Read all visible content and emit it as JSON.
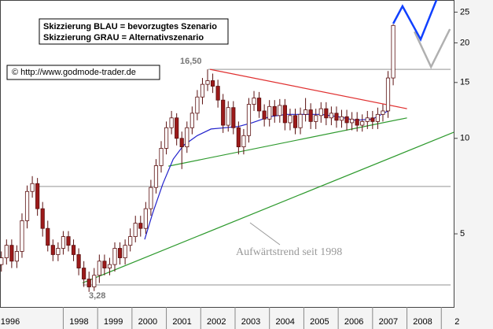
{
  "chart_data": {
    "type": "candlestick",
    "x": [
      1996.2,
      1996.35,
      1996.5,
      1996.65,
      1996.8,
      1996.95,
      1997.1,
      1997.25,
      1997.4,
      1997.55,
      1997.7,
      1997.85,
      1998.0,
      1998.15,
      1998.3,
      1998.45,
      1998.6,
      1998.75,
      1998.9,
      1999.05,
      1999.2,
      1999.35,
      1999.5,
      1999.65,
      1999.8,
      1999.95,
      2000.1,
      2000.25,
      2000.4,
      2000.55,
      2000.7,
      2000.85,
      2001.0,
      2001.15,
      2001.3,
      2001.45,
      2001.6,
      2001.75,
      2001.9,
      2002.05,
      2002.2,
      2002.35,
      2002.5,
      2002.65,
      2002.8,
      2002.95,
      2003.1,
      2003.25,
      2003.4,
      2003.55,
      2003.7,
      2003.85,
      2004.0,
      2004.15,
      2004.3,
      2004.45,
      2004.6,
      2004.75,
      2004.9,
      2005.05,
      2005.2,
      2005.35,
      2005.5,
      2005.65,
      2005.8,
      2005.95,
      2006.1,
      2006.25,
      2006.4,
      2006.55,
      2006.7,
      2006.85,
      2007.0,
      2007.15,
      2007.3,
      2007.45,
      2007.6
    ],
    "open": [
      4.0,
      4.2,
      4.6,
      4.1,
      4.4,
      5.5,
      6.8,
      7.2,
      6.0,
      5.2,
      4.6,
      4.3,
      4.5,
      4.9,
      4.6,
      4.3,
      3.9,
      3.6,
      3.4,
      3.7,
      4.1,
      3.9,
      4.0,
      4.5,
      4.2,
      4.6,
      4.9,
      5.4,
      5.2,
      6.0,
      7.0,
      8.2,
      9.3,
      10.8,
      11.6,
      10.0,
      9.4,
      10.8,
      12.0,
      13.5,
      14.8,
      15.2,
      14.6,
      13.2,
      11.0,
      12.5,
      10.8,
      9.4,
      10.2,
      12.8,
      13.4,
      12.2,
      11.5,
      12.6,
      11.8,
      12.7,
      11.2,
      11.8,
      10.8,
      11.9,
      12.3,
      11.3,
      11.8,
      12.4,
      11.6,
      12.0,
      11.4,
      11.7,
      11.2,
      11.5,
      11.0,
      11.3,
      11.6,
      11.3,
      11.9,
      12.2,
      15.5
    ],
    "high": [
      4.4,
      4.8,
      4.8,
      4.6,
      5.8,
      7.1,
      7.6,
      7.5,
      6.3,
      5.5,
      4.8,
      4.7,
      5.1,
      5.1,
      4.8,
      4.5,
      4.1,
      3.8,
      3.9,
      4.3,
      4.3,
      4.2,
      4.7,
      4.7,
      4.8,
      5.2,
      5.7,
      5.7,
      6.3,
      7.4,
      8.6,
      9.8,
      11.3,
      12.2,
      12.0,
      10.5,
      11.3,
      12.6,
      14.2,
      15.5,
      16.5,
      16.0,
      15.3,
      13.8,
      13.1,
      13.1,
      11.3,
      10.7,
      13.4,
      14.1,
      14.0,
      12.8,
      13.2,
      13.2,
      13.3,
      13.3,
      12.4,
      12.4,
      12.5,
      13.4,
      12.9,
      12.4,
      13.0,
      13.0,
      12.6,
      12.6,
      12.3,
      12.3,
      12.1,
      12.1,
      11.9,
      12.2,
      12.2,
      12.5,
      12.8,
      16.3,
      22.9
    ],
    "low": [
      3.8,
      4.0,
      3.9,
      3.9,
      4.2,
      5.2,
      6.5,
      5.7,
      4.9,
      4.4,
      4.1,
      4.1,
      4.3,
      4.4,
      4.1,
      3.7,
      3.4,
      3.28,
      3.3,
      3.5,
      3.7,
      3.7,
      3.8,
      4.0,
      4.0,
      4.4,
      4.7,
      4.9,
      5.0,
      5.7,
      6.7,
      7.8,
      8.9,
      10.3,
      9.5,
      8.0,
      9.0,
      10.3,
      11.4,
      12.8,
      14.1,
      13.9,
      12.5,
      10.4,
      10.5,
      10.3,
      8.9,
      8.9,
      9.7,
      12.2,
      11.6,
      10.9,
      10.9,
      11.2,
      11.2,
      10.6,
      10.6,
      10.3,
      10.3,
      11.3,
      10.7,
      10.7,
      11.2,
      11.0,
      11.0,
      10.8,
      10.8,
      10.6,
      10.6,
      10.5,
      10.5,
      10.7,
      10.7,
      10.7,
      11.3,
      11.6,
      14.7
    ],
    "close": [
      4.2,
      4.6,
      4.1,
      4.4,
      5.5,
      6.8,
      7.2,
      6.0,
      5.2,
      4.6,
      4.3,
      4.5,
      4.9,
      4.6,
      4.3,
      3.9,
      3.6,
      3.4,
      3.7,
      4.1,
      3.9,
      4.0,
      4.5,
      4.2,
      4.6,
      4.9,
      5.4,
      5.2,
      6.0,
      7.0,
      8.2,
      9.3,
      10.8,
      11.6,
      10.0,
      9.4,
      10.8,
      12.0,
      13.5,
      14.8,
      15.2,
      14.6,
      13.2,
      11.0,
      12.5,
      10.8,
      9.4,
      10.2,
      12.8,
      13.4,
      12.2,
      11.5,
      12.6,
      11.8,
      12.7,
      11.2,
      11.8,
      10.8,
      11.9,
      12.3,
      11.3,
      11.8,
      12.4,
      11.6,
      12.0,
      11.4,
      11.7,
      11.2,
      11.5,
      11.0,
      11.3,
      11.6,
      11.3,
      11.9,
      12.2,
      15.5,
      22.7
    ],
    "up_color": "#ffffff",
    "down_color": "#9c1a1a",
    "edge_color": "#5a0f0f",
    "xlim": [
      1996.16,
      2009.36
    ],
    "xticks": [
      1996,
      1998,
      1999,
      2000,
      2001,
      2002,
      2003,
      2004,
      2005,
      2006,
      2007,
      2008,
      {
        "value": 2009,
        "label": "2"
      }
    ],
    "ylim": [
      2.94,
      27.3
    ],
    "yticks": [
      5,
      10,
      15,
      20,
      25
    ],
    "log_scale": true,
    "grid": false,
    "overlays": [
      {
        "color": "#a8a8a8",
        "x": [
          2002.22,
          2009.27
        ],
        "values": [
          16.5,
          16.5
        ]
      },
      {
        "color": "#a8a8a8",
        "x": [
          1997.24,
          2009.27
        ],
        "values": [
          7.05,
          7.05
        ]
      },
      {
        "color": "#a8a8a8",
        "x": [
          1998.56,
          2009.27
        ],
        "values": [
          3.45,
          3.45
        ]
      },
      {
        "color": "#e03030",
        "x": [
          2002.27,
          2008.0
        ],
        "values": [
          16.5,
          12.4
        ]
      },
      {
        "color": "#2e9a2e",
        "x": [
          2001.06,
          2008.0
        ],
        "values": [
          8.17,
          11.6
        ]
      },
      {
        "color": "#2e9a2e",
        "x": [
          1998.56,
          2009.36
        ],
        "values": [
          3.5,
          10.45
        ]
      },
      {
        "color": "#2222cc",
        "x": [
          2000.37,
          2000.6,
          2000.9,
          2001.2,
          2001.5,
          2001.9,
          2002.3,
          2002.7,
          2003.1,
          2003.5,
          2004.0,
          2004.5,
          2005.0,
          2005.5,
          2006.0,
          2006.5,
          2007.0,
          2007.45
        ],
        "values": [
          4.8,
          5.8,
          7.2,
          8.6,
          9.5,
          10.2,
          10.7,
          10.8,
          10.9,
          11.2,
          11.7,
          11.9,
          11.9,
          11.9,
          11.7,
          11.4,
          11.5,
          12.2
        ]
      },
      {
        "color": "#b0b0b0",
        "x": [
          2008.22,
          2008.7,
          2009.25
        ],
        "values": [
          21.7,
          16.8,
          22.1
        ]
      },
      {
        "color": "#1040ff",
        "x": [
          2007.6,
          2007.87,
          2008.4,
          2008.86
        ],
        "values": [
          23.0,
          26.1,
          20.5,
          27.3
        ]
      }
    ],
    "annotations": [
      "Skizzierung BLAU = bevorzugtes Szenario",
      "Skizzierung GRAU = Alternativszenario",
      "© http://www.godmode-trader.de",
      "16,50",
      "3,28",
      "Aufwärtstrend seit 1998"
    ]
  }
}
